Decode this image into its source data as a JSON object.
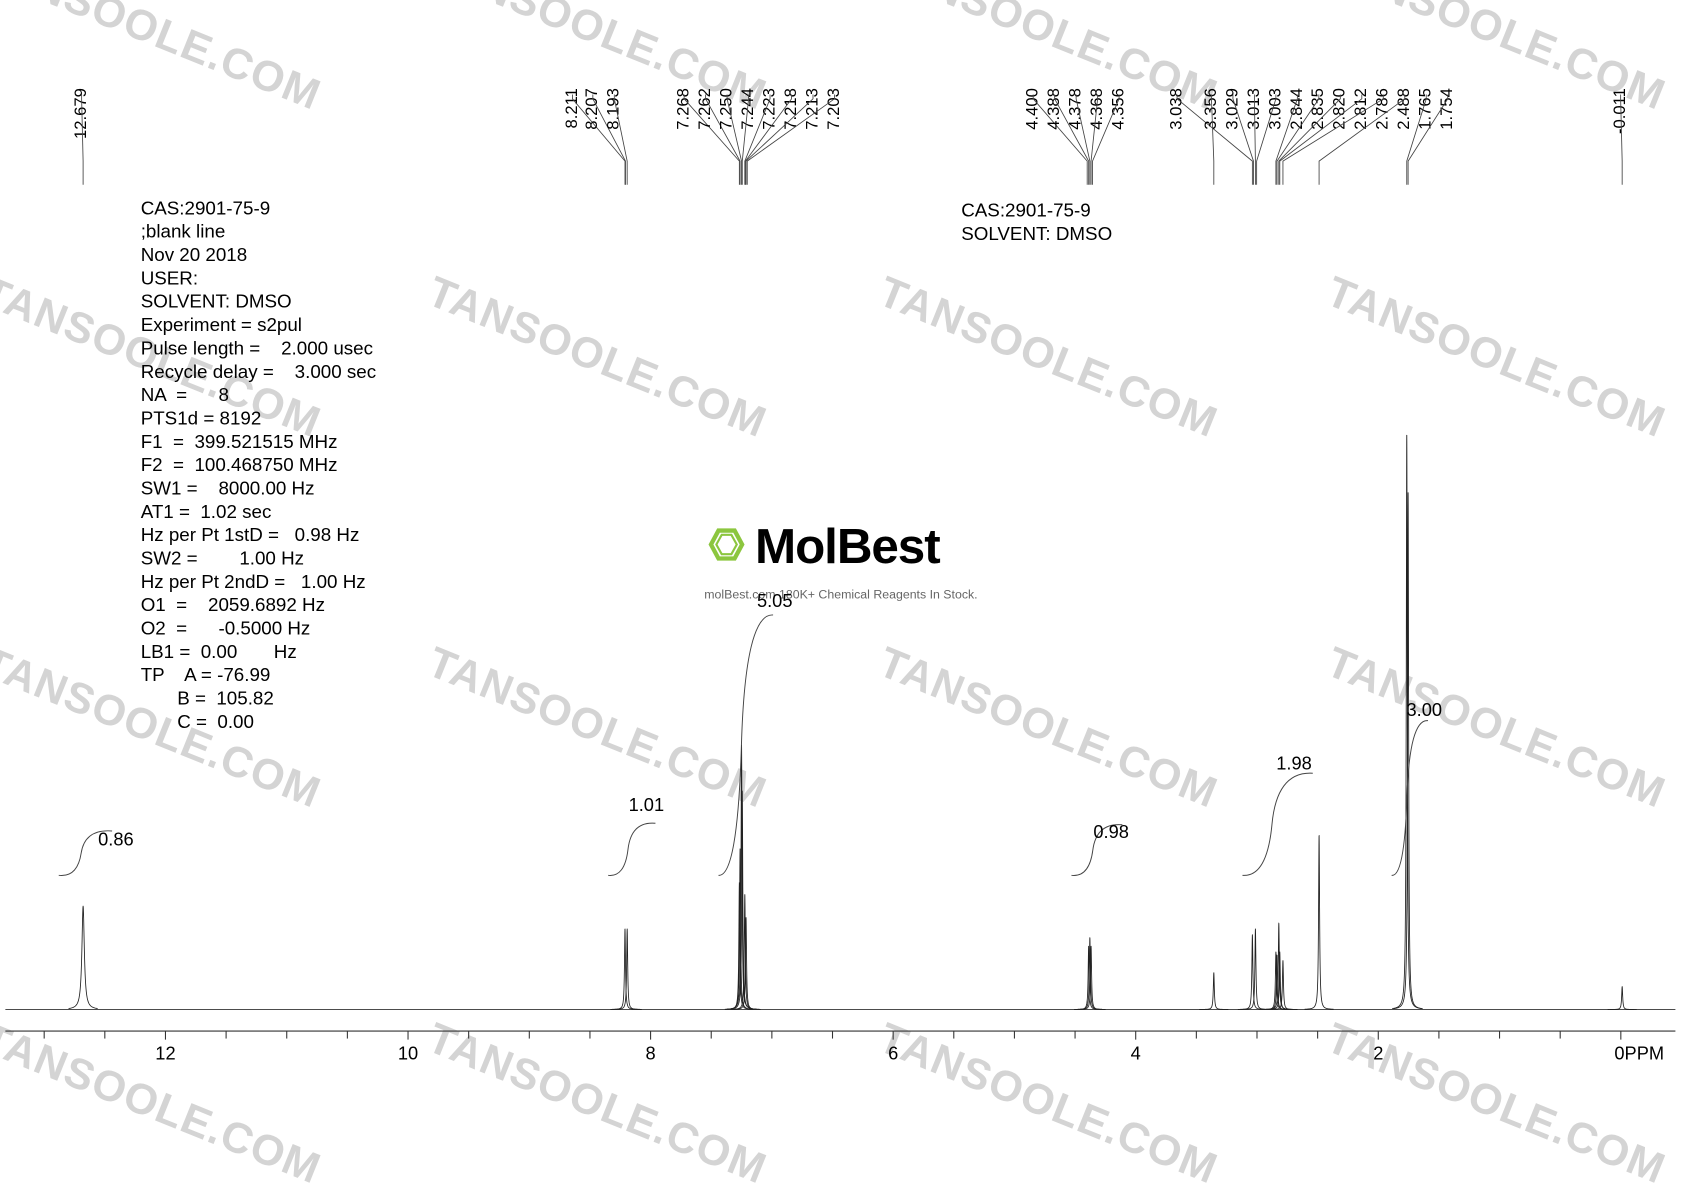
{
  "chart_data": {
    "type": "nmr",
    "watermark": "TANSOOLE.COM",
    "logo": {
      "name": "MolBest",
      "tagline": "molBest.com 180K+ Chemical Reagents In Stock."
    },
    "parameters": [
      "CAS:2901-75-9",
      ";blank line",
      "Nov 20 2018",
      "USER:",
      "SOLVENT: DMSO",
      "Experiment = s2pul",
      "Pulse length =    2.000 usec",
      "Recycle delay =    3.000 sec",
      "NA  =      8",
      "PTS1d = 8192",
      "F1  =  399.521515 MHz",
      "F2  =  100.468750 MHz",
      "SW1 =    8000.00 Hz",
      "AT1 =  1.02 sec",
      "Hz per Pt 1stD =   0.98 Hz",
      "SW2 =        1.00 Hz",
      "Hz per Pt 2ndD =   1.00 Hz",
      "O1  =    2059.6892 Hz",
      "O2  =      -0.5000 Hz",
      "LB1 =  0.00       Hz",
      "TP    A = -76.99",
      "       B =  105.82",
      "       C =  0.00"
    ],
    "header": [
      "CAS:2901-75-9",
      "SOLVENT: DMSO"
    ],
    "xlim": [
      13.32,
      -0.45
    ],
    "xticks": [
      12,
      10,
      8,
      6,
      4,
      2,
      {
        "value": 0,
        "label": "0PPM"
      }
    ],
    "xminorticks": [
      13,
      12.5,
      11.5,
      11,
      10.5,
      9.5,
      9,
      8.5,
      7.5,
      7,
      6.5,
      5.5,
      5,
      4.5,
      3.5,
      3,
      2.5,
      1.5,
      1,
      0.5
    ],
    "peak_picks": {
      "values": [
        12.679,
        8.211,
        8.207,
        8.193,
        7.268,
        7.262,
        7.25,
        7.244,
        7.223,
        7.218,
        7.213,
        7.203,
        4.4,
        4.388,
        4.378,
        4.368,
        4.356,
        3.038,
        3.356,
        3.029,
        3.013,
        3.003,
        2.844,
        2.835,
        2.82,
        2.812,
        2.786,
        2.488,
        1.765,
        1.754,
        -0.011
      ],
      "value_labels": [
        "12.679",
        "8.211",
        "8.207",
        "8.193",
        "7.268",
        "7.262",
        "7.250",
        "7.244",
        "7.223",
        "7.218",
        "7.213",
        "7.203",
        "4.400",
        "4.388",
        "4.378",
        "4.368",
        "4.356",
        "3.038",
        "3.356",
        "3.029",
        "3.013",
        "3.003",
        "2.844",
        "2.835",
        "2.820",
        "2.812",
        "2.786",
        "2.488",
        "1.765",
        "1.754",
        "-0.011"
      ]
    },
    "peaks": {
      "x": [
        12.679,
        8.211,
        8.193,
        7.268,
        7.262,
        7.25,
        7.244,
        7.223,
        7.213,
        4.388,
        4.378,
        4.368,
        3.356,
        3.038,
        3.013,
        2.844,
        2.835,
        2.82,
        2.812,
        2.786,
        2.488,
        1.765,
        1.754,
        -0.011
      ],
      "values": [
        0.18,
        0.14,
        0.14,
        0.22,
        0.28,
        0.46,
        0.38,
        0.2,
        0.16,
        0.11,
        0.125,
        0.11,
        0.064,
        0.13,
        0.14,
        0.1,
        0.095,
        0.15,
        0.1,
        0.085,
        0.303,
        1.0,
        0.9,
        0.04
      ]
    },
    "integrals": {
      "ranges": [
        [
          12.88,
          12.44
        ],
        [
          8.35,
          7.96
        ],
        [
          7.44,
          6.99
        ],
        [
          4.53,
          4.11
        ],
        [
          3.12,
          2.54
        ],
        [
          1.89,
          1.59
        ]
      ],
      "values": [
        0.86,
        1.01,
        5.05,
        0.98,
        1.98,
        3
      ],
      "value_labels": [
        "0.86",
        "1.01",
        "5.05",
        "0.98",
        "1.98",
        "3.00"
      ]
    }
  }
}
